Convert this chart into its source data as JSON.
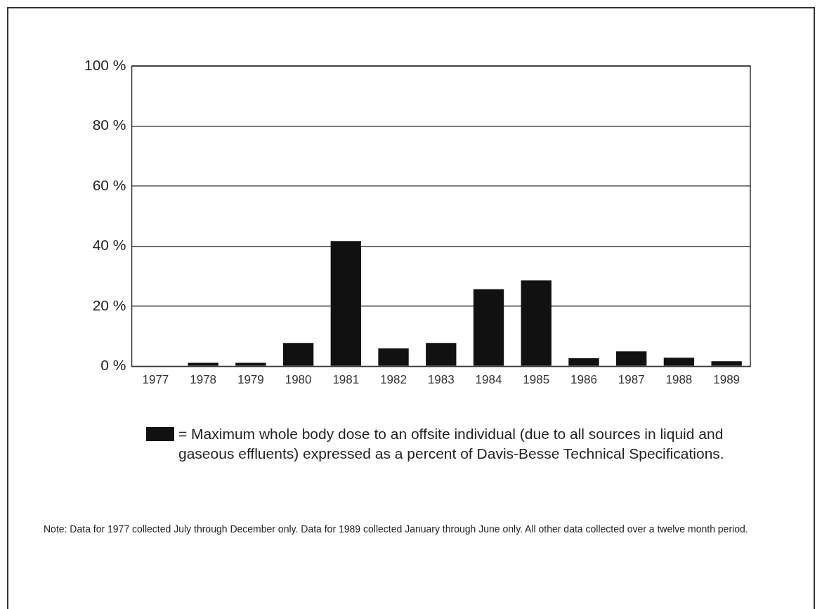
{
  "chart_data": {
    "type": "bar",
    "categories": [
      "1977",
      "1978",
      "1979",
      "1980",
      "1981",
      "1982",
      "1983",
      "1984",
      "1985",
      "1986",
      "1987",
      "1988",
      "1989"
    ],
    "series": [
      {
        "name": "= Maximum whole body dose to an offsite individual (due to all sources in liquid and gaseous  effluents) expressed as  a percent of Davis-Besse Technical Specifications.",
        "color": "#111111",
        "values": [
          0,
          1.2,
          1.2,
          7.8,
          41.7,
          6,
          7.8,
          25.7,
          28.6,
          2.7,
          5,
          2.9,
          1.7
        ]
      }
    ],
    "ylim": [
      0,
      100
    ],
    "yticks": [
      {
        "value": 0,
        "label": "0 %"
      },
      {
        "value": 20,
        "label": "20 %"
      },
      {
        "value": 40,
        "label": "40 %"
      },
      {
        "value": 60,
        "label": "60 %"
      },
      {
        "value": 80,
        "label": "80 %"
      },
      {
        "value": 100,
        "label": "100 %"
      }
    ],
    "grid": "y",
    "legend": "bottom",
    "annotations": [
      "Note:  Data for 1977 collected July through December only.  Data for 1989 collected January through June only.  All other data collected over a twelve month period."
    ]
  }
}
